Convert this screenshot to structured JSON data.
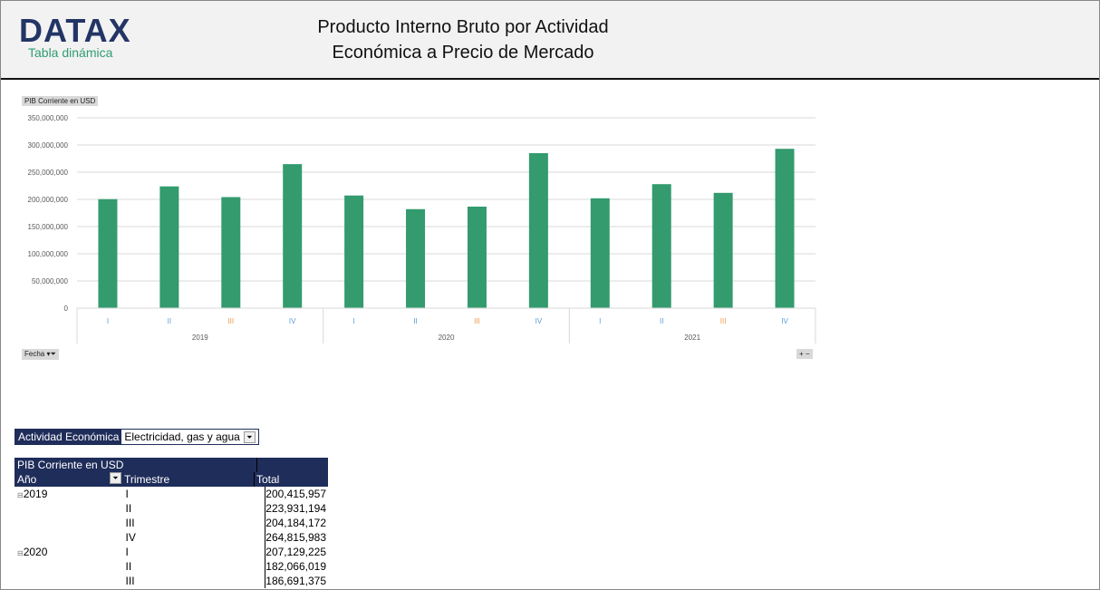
{
  "header": {
    "logo": "DATAX",
    "logo_sub": "Tabla dinámica",
    "title_line1": "Producto Interno Bruto por Actividad",
    "title_line2": "Económica a Precio de Mercado"
  },
  "chart_tag": "PIB Corriente en USD",
  "fecha_button": "Fecha",
  "zoom_buttons": [
    "+",
    "−"
  ],
  "chart_data": {
    "type": "bar",
    "ylim": [
      0,
      350000000
    ],
    "yticks": [
      "0",
      "50,000,000",
      "100,000,000",
      "150,000,000",
      "200,000,000",
      "250,000,000",
      "300,000,000",
      "350,000,000"
    ],
    "categories": [
      "I",
      "II",
      "III",
      "IV",
      "I",
      "II",
      "III",
      "IV",
      "I",
      "II",
      "III",
      "IV"
    ],
    "groups": [
      "2019",
      "2020",
      "2021"
    ],
    "values": [
      200415957,
      223931194,
      204184172,
      264815983,
      207129225,
      182066019,
      186691375,
      285000000,
      202000000,
      228000000,
      212000000,
      293000000
    ],
    "bar_color": "#339b6e",
    "grid": true,
    "tick_colors": {
      "I": "#5b9bd5",
      "II": "#5b9bd5",
      "III": "#ed9a4b",
      "IV": "#5b9bd5"
    }
  },
  "filter": {
    "label": "Actividad Económica",
    "value": "Electricidad, gas y agua"
  },
  "pivot": {
    "title": "PIB Corriente en USD",
    "col_year": "Año",
    "col_quarter": "Trimestre",
    "col_total": "Total",
    "rows": [
      {
        "year": "2019",
        "q": "I",
        "total": "200,415,957"
      },
      {
        "year": "",
        "q": "II",
        "total": "223,931,194"
      },
      {
        "year": "",
        "q": "III",
        "total": "204,184,172"
      },
      {
        "year": "",
        "q": "IV",
        "total": "264,815,983"
      },
      {
        "year": "2020",
        "q": "I",
        "total": "207,129,225"
      },
      {
        "year": "",
        "q": "II",
        "total": "182,066,019"
      },
      {
        "year": "",
        "q": "III",
        "total": "186,691,375"
      }
    ]
  }
}
